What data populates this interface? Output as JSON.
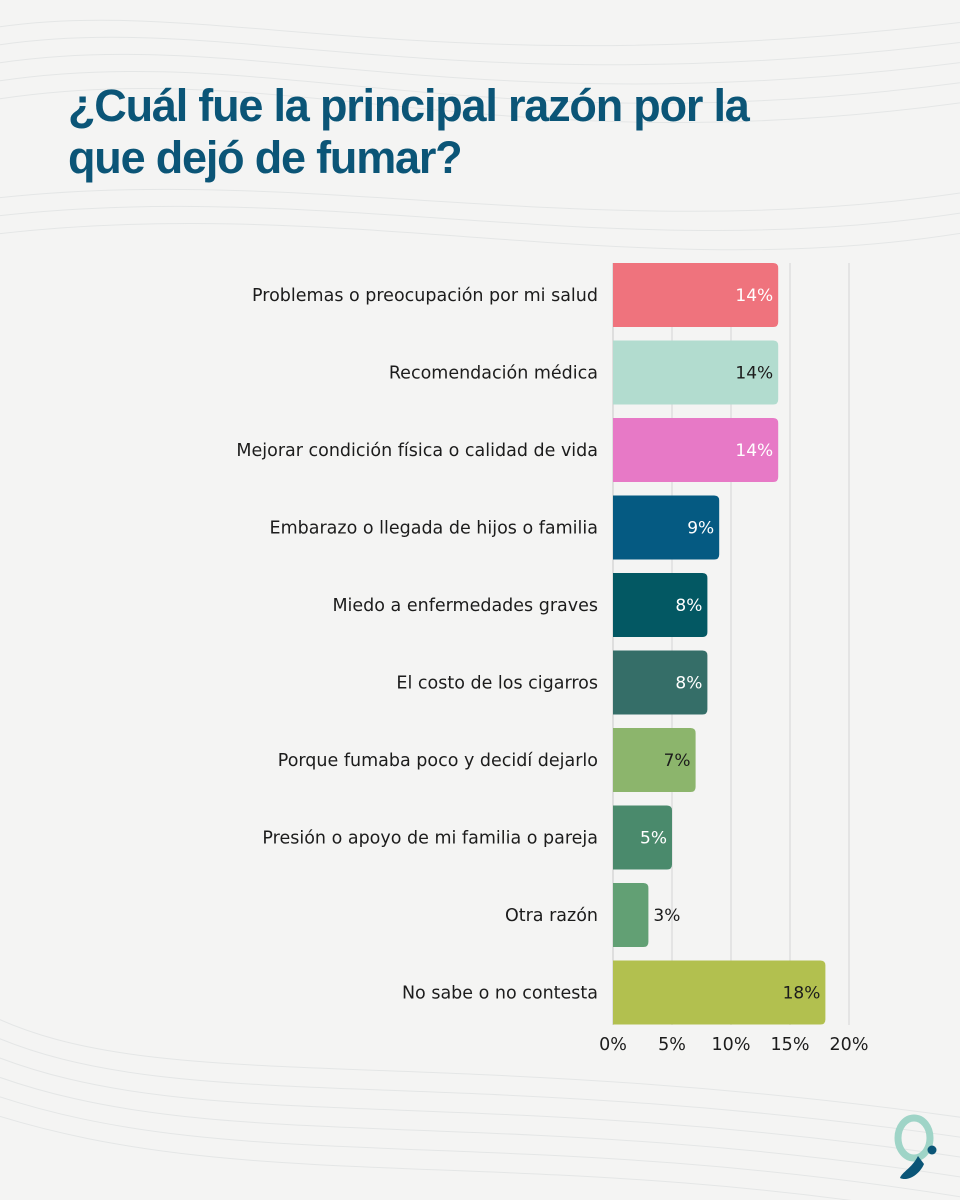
{
  "page": {
    "title": "¿Cuál fue la principal razón por la que dejó de fumar?"
  },
  "chart_data": {
    "type": "bar",
    "orientation": "horizontal",
    "title": "¿Cuál fue la principal razón por la que dejó de fumar?",
    "categories": [
      "Problemas o preocupación por mi salud",
      "Recomendación médica",
      "Mejorar condición física o calidad de vida",
      "Embarazo o llegada de hijos o familia",
      "Miedo a enfermedades graves",
      "El costo de los cigarros",
      "Porque fumaba poco y decidí dejarlo",
      "Presión o apoyo de mi familia o pareja",
      "Otra razón",
      "No sabe o no contesta"
    ],
    "values": [
      14,
      14,
      14,
      9,
      8,
      8,
      7,
      5,
      3,
      18
    ],
    "value_labels": [
      "14%",
      "14%",
      "14%",
      "9%",
      "8%",
      "8%",
      "7%",
      "5%",
      "3%",
      "18%"
    ],
    "bar_colors": [
      "#ef737d",
      "#b2dccf",
      "#e779c6",
      "#055a82",
      "#035863",
      "#356e68",
      "#8cb56c",
      "#4a8a6c",
      "#62a074",
      "#b2c04f"
    ],
    "value_label_colors": [
      "#ffffff",
      "#1c1c1c",
      "#ffffff",
      "#ffffff",
      "#ffffff",
      "#ffffff",
      "#1c1c1c",
      "#ffffff",
      "#1c1c1c",
      "#1c1c1c"
    ],
    "value_label_position": [
      "inside",
      "inside",
      "inside",
      "inside",
      "inside",
      "inside",
      "inside",
      "inside",
      "outside",
      "inside"
    ],
    "xlim": [
      0,
      20
    ],
    "xticks": [
      0,
      5,
      10,
      15,
      20
    ],
    "xtick_labels": [
      "0%",
      "5%",
      "10%",
      "15%",
      "20%"
    ],
    "grid": true,
    "legend": "none"
  }
}
